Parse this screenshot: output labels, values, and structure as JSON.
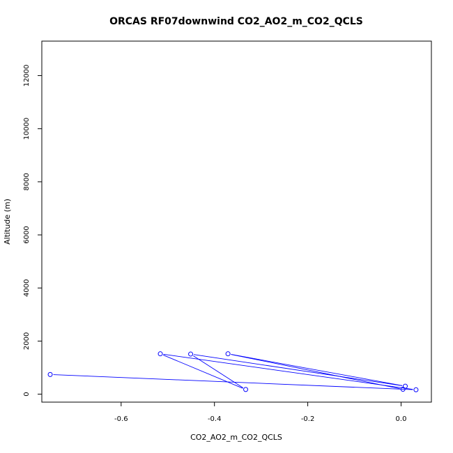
{
  "chart_data": {
    "type": "line",
    "title": "ORCAS RF07downwind CO2_AO2_m_CO2_QCLS",
    "xlabel": "CO2_AO2_m_CO2_QCLS",
    "ylabel": "Altitude (m)",
    "xlim": [
      -0.77,
      0.065
    ],
    "ylim": [
      -300,
      13300
    ],
    "x_ticks": [
      -0.6,
      -0.4,
      -0.2,
      0.0
    ],
    "x_tick_labels": [
      "-0.6",
      "-0.4",
      "-0.2",
      "0.0"
    ],
    "y_ticks": [
      0,
      2000,
      4000,
      6000,
      8000,
      10000,
      12000
    ],
    "y_tick_labels": [
      "0",
      "2000",
      "4000",
      "6000",
      "8000",
      "10000",
      "12000"
    ],
    "grid": false,
    "series": [
      {
        "color": "#0000ff",
        "marker": "open-circle",
        "points": [
          {
            "x": -0.752,
            "y": 740
          },
          {
            "x": 0.032,
            "y": 165
          },
          {
            "x": -0.516,
            "y": 1520
          },
          {
            "x": -0.333,
            "y": 175
          },
          {
            "x": -0.451,
            "y": 1510
          },
          {
            "x": 0.009,
            "y": 300
          },
          {
            "x": -0.371,
            "y": 1520
          },
          {
            "x": 0.004,
            "y": 185
          }
        ]
      }
    ]
  }
}
